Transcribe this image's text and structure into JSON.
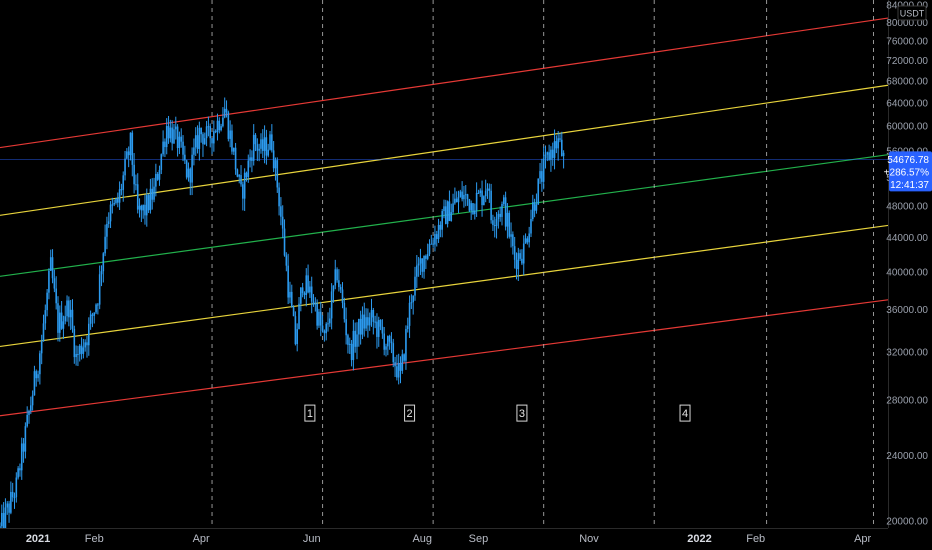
{
  "chart_data": {
    "type": "candlestick",
    "symbol_unit": "USDT",
    "y_axis": {
      "scale": "log",
      "ylim": [
        20000,
        84000
      ],
      "tick_labels": [
        "84000.00",
        "80000.00",
        "76000.00",
        "72000.00",
        "68000.00",
        "64000.00",
        "60000.00",
        "56000.00",
        "52000.00",
        "48000.00",
        "44000.00",
        "40000.00",
        "36000.00",
        "32000.00",
        "28000.00",
        "24000.00",
        "20000.00"
      ]
    },
    "x_axis": {
      "range": [
        "2020-12-11",
        "2022-04-15"
      ],
      "tick_labels": [
        {
          "date": "2021-01-01",
          "label": "2021",
          "bold": true
        },
        {
          "date": "2021-02-01",
          "label": "Feb",
          "bold": false
        },
        {
          "date": "2021-04-01",
          "label": "Apr",
          "bold": false
        },
        {
          "date": "2021-06-01",
          "label": "Jun",
          "bold": false
        },
        {
          "date": "2021-08-01",
          "label": "Aug",
          "bold": false
        },
        {
          "date": "2021-09-01",
          "label": "Sep",
          "bold": false
        },
        {
          "date": "2021-11-01",
          "label": "Nov",
          "bold": false
        },
        {
          "date": "2022-01-01",
          "label": "2022",
          "bold": true
        },
        {
          "date": "2022-02-01",
          "label": "Feb",
          "bold": false
        },
        {
          "date": "2022-04-01",
          "label": "Apr",
          "bold": false
        }
      ]
    },
    "price_path": [
      [
        "2020-12-11",
        19500
      ],
      [
        "2020-12-20",
        22000
      ],
      [
        "2020-12-27",
        27000
      ],
      [
        "2021-01-03",
        33000
      ],
      [
        "2021-01-08",
        40500
      ],
      [
        "2021-01-12",
        34500
      ],
      [
        "2021-01-18",
        36500
      ],
      [
        "2021-01-22",
        31500
      ],
      [
        "2021-01-28",
        33500
      ],
      [
        "2021-02-03",
        37500
      ],
      [
        "2021-02-08",
        46500
      ],
      [
        "2021-02-14",
        48500
      ],
      [
        "2021-02-21",
        57000
      ],
      [
        "2021-02-25",
        47000
      ],
      [
        "2021-03-01",
        47500
      ],
      [
        "2021-03-06",
        50000
      ],
      [
        "2021-03-13",
        60000
      ],
      [
        "2021-03-19",
        57500
      ],
      [
        "2021-03-25",
        52000
      ],
      [
        "2021-03-31",
        59000
      ],
      [
        "2021-04-05",
        58000
      ],
      [
        "2021-04-10",
        60500
      ],
      [
        "2021-04-14",
        63000
      ],
      [
        "2021-04-18",
        57000
      ],
      [
        "2021-04-23",
        49500
      ],
      [
        "2021-04-30",
        57500
      ],
      [
        "2021-05-04",
        56000
      ],
      [
        "2021-05-10",
        57500
      ],
      [
        "2021-05-14",
        49000
      ],
      [
        "2021-05-19",
        38500
      ],
      [
        "2021-05-23",
        33000
      ],
      [
        "2021-05-27",
        39000
      ],
      [
        "2021-06-02",
        37000
      ],
      [
        "2021-06-08",
        33000
      ],
      [
        "2021-06-15",
        40000
      ],
      [
        "2021-06-22",
        32000
      ],
      [
        "2021-06-28",
        34500
      ],
      [
        "2021-07-04",
        35000
      ],
      [
        "2021-07-10",
        33500
      ],
      [
        "2021-07-16",
        31500
      ],
      [
        "2021-07-20",
        29800
      ],
      [
        "2021-07-26",
        37500
      ],
      [
        "2021-07-31",
        41000
      ],
      [
        "2021-08-07",
        44000
      ],
      [
        "2021-08-14",
        47000
      ],
      [
        "2021-08-23",
        49500
      ],
      [
        "2021-08-28",
        48500
      ],
      [
        "2021-09-03",
        49500
      ],
      [
        "2021-09-06",
        51500
      ],
      [
        "2021-09-08",
        46500
      ],
      [
        "2021-09-15",
        48000
      ],
      [
        "2021-09-21",
        41500
      ],
      [
        "2021-09-26",
        42500
      ],
      [
        "2021-10-01",
        48000
      ],
      [
        "2021-10-05",
        51500
      ],
      [
        "2021-10-10",
        55500
      ],
      [
        "2021-10-15",
        57500
      ],
      [
        "2021-10-18",
        54676.78
      ]
    ],
    "channel_lines": [
      {
        "color": "#e53935",
        "start": [
          "2020-12-11",
          26800
        ],
        "end": [
          "2022-04-15",
          37000
        ]
      },
      {
        "color": "#e8d43c",
        "start": [
          "2020-12-11",
          32500
        ],
        "end": [
          "2022-04-15",
          45500
        ]
      },
      {
        "color": "#22b14c",
        "start": [
          "2020-12-11",
          39500
        ],
        "end": [
          "2022-04-15",
          55400
        ]
      },
      {
        "color": "#e8d43c",
        "start": [
          "2020-12-11",
          46800
        ],
        "end": [
          "2022-04-15",
          67200
        ]
      },
      {
        "color": "#e53935",
        "start": [
          "2020-12-11",
          56500
        ],
        "end": [
          "2022-04-15",
          81000
        ]
      }
    ],
    "vertical_markers": [
      "2021-04-07",
      "2021-06-07",
      "2021-08-07",
      "2021-10-07",
      "2021-12-07",
      "2022-02-07",
      "2022-04-07"
    ],
    "annotations": [
      {
        "label": "1",
        "date": "2021-05-31",
        "price": 27000
      },
      {
        "label": "2",
        "date": "2021-07-25",
        "price": 27000
      },
      {
        "label": "3",
        "date": "2021-09-25",
        "price": 27000
      },
      {
        "label": "4",
        "date": "2021-12-24",
        "price": 27000
      }
    ],
    "last_price": {
      "value": 54676.78,
      "label": "54676.78",
      "change": "+286.57%",
      "countdown": "12:41:37"
    },
    "colors": {
      "candles": "#2c9bf0",
      "price_tag": "#2962ff",
      "price_line": "#2962ff",
      "vertical_marker": "#c8c8c8"
    }
  }
}
